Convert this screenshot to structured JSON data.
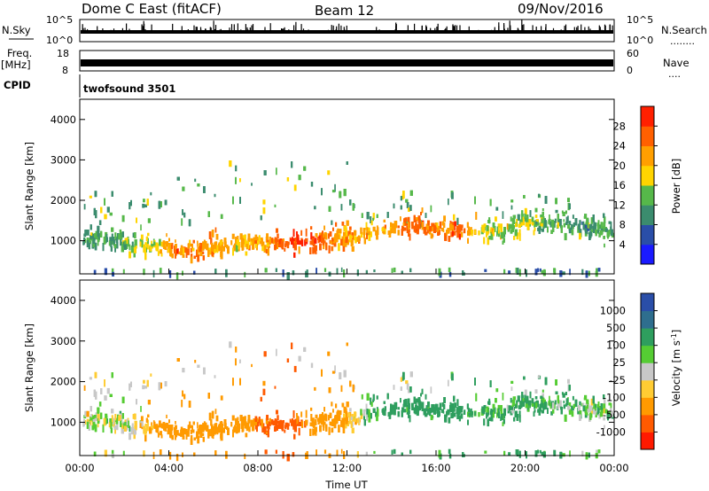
{
  "header": {
    "station": "Dome C East (fitACF)",
    "beam": "Beam 12",
    "date": "09/Nov/2016"
  },
  "strips": {
    "nsky": {
      "label": "N.Sky",
      "ticks_left": [
        "10^5",
        "10^0"
      ],
      "ticks_right": [
        "10^5",
        "10^0"
      ],
      "right_label": "N.Search",
      "right_marker": "........"
    },
    "freq": {
      "label_top": "Freq.",
      "label_bottom": "[MHz]",
      "ticks_left": [
        "18",
        "8"
      ],
      "ticks_right": [
        "60",
        "0"
      ],
      "right_label": "Nave",
      "right_marker": "...."
    },
    "cpid": {
      "label": "CPID",
      "value": "twofsound 3501"
    }
  },
  "colors": {
    "power": [
      "#1a1aff",
      "#2a4ea8",
      "#3b8c6e",
      "#56b84a",
      "#ffd400",
      "#ff9f00",
      "#ff6000",
      "#ff2000"
    ],
    "velocity": [
      "#ff1a00",
      "#ff5a00",
      "#ff9a00",
      "#ffcc33",
      "#c8c8c8",
      "#55cc33",
      "#2e9e5e",
      "#2e6e8e",
      "#2a4ea8"
    ]
  },
  "chart_data": [
    {
      "type": "heatmap",
      "name": "power-panel",
      "xlabel": "",
      "ylabel": "Slant Range [km]",
      "xlim": [
        "00:00",
        "24:00"
      ],
      "ylim": [
        180,
        4500
      ],
      "yticks": [
        "1000",
        "2000",
        "3000",
        "4000"
      ],
      "colorbar": {
        "label": "Power [dB]",
        "ticks": [
          "4",
          "8",
          "12",
          "16",
          "20",
          "24",
          "28"
        ],
        "range": [
          0,
          32
        ]
      },
      "x_hours": [
        0,
        1,
        2,
        3,
        4,
        5,
        6,
        7,
        8,
        9,
        10,
        11,
        12,
        13,
        14,
        15,
        16,
        17,
        18,
        19,
        20,
        21,
        22,
        23,
        24
      ],
      "band_center_km": [
        1150,
        1100,
        1050,
        950,
        900,
        850,
        900,
        950,
        1000,
        1000,
        1050,
        1100,
        1200,
        1300,
        1400,
        1450,
        1400,
        1300,
        1250,
        1300,
        1550,
        1500,
        1450,
        1350,
        1250
      ],
      "band_power_db": [
        12,
        12,
        14,
        16,
        22,
        24,
        22,
        20,
        22,
        26,
        28,
        24,
        22,
        20,
        22,
        26,
        24,
        26,
        18,
        16,
        16,
        14,
        12,
        12,
        12
      ]
    },
    {
      "type": "heatmap",
      "name": "velocity-panel",
      "xlabel": "Time UT",
      "ylabel": "Slant Range [km]",
      "xlim": [
        "00:00",
        "24:00"
      ],
      "ylim": [
        180,
        4500
      ],
      "xticks": [
        "00:00",
        "04:00",
        "08:00",
        "12:00",
        "16:00",
        "20:00",
        "00:00"
      ],
      "yticks": [
        "1000",
        "2000",
        "3000",
        "4000"
      ],
      "colorbar": {
        "label": "Velocity [m s",
        "label_sup": "-1",
        "label_end": "]",
        "ticks": [
          "1000",
          "500",
          "100",
          "25",
          "-25",
          "-100",
          "-500",
          "-1000"
        ]
      },
      "x_hours": [
        0,
        1,
        2,
        3,
        4,
        5,
        6,
        7,
        8,
        9,
        10,
        11,
        12,
        13,
        14,
        15,
        16,
        17,
        18,
        19,
        20,
        21,
        22,
        23,
        24
      ],
      "band_velocity_ms": [
        -25,
        25,
        25,
        -100,
        -300,
        -300,
        -200,
        -300,
        -500,
        -600,
        -500,
        -300,
        -100,
        100,
        200,
        200,
        200,
        200,
        100,
        100,
        150,
        100,
        100,
        50,
        50
      ]
    }
  ]
}
